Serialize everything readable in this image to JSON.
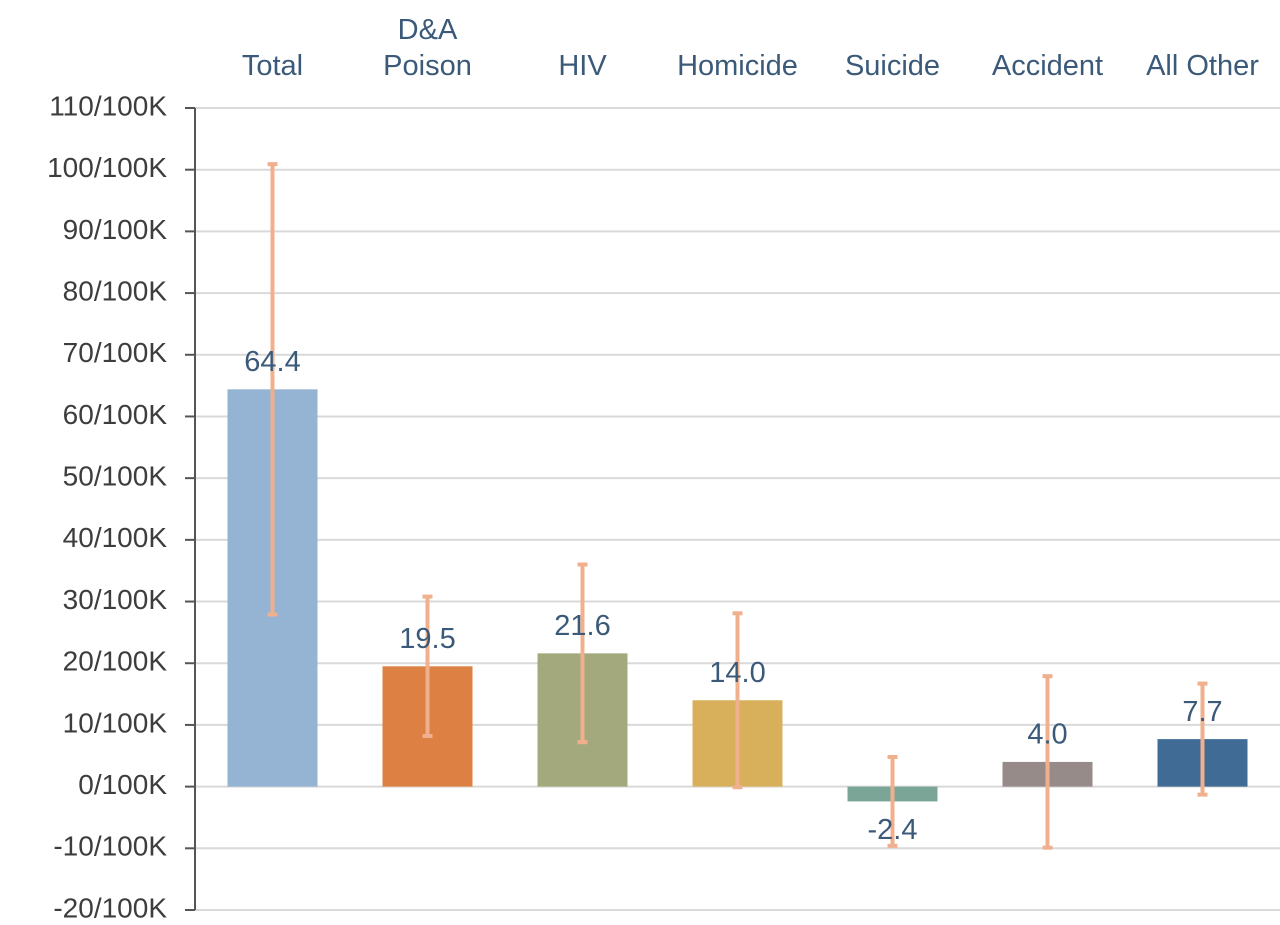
{
  "chart_data": {
    "type": "bar",
    "categories": [
      "Total",
      "D&A\nPoison",
      "HIV",
      "Homicide",
      "Suicide",
      "Accident",
      "All Other"
    ],
    "values": [
      64.4,
      19.5,
      21.6,
      14.0,
      -2.4,
      4.0,
      7.7
    ],
    "value_labels": [
      "64.4",
      "19.5",
      "21.6",
      "14.0",
      "-2.4",
      "4.0",
      "7.7"
    ],
    "errors": [
      36.5,
      11.3,
      14.4,
      14.1,
      7.2,
      13.9,
      9.0
    ],
    "colors": [
      "#95b3d2",
      "#dd8044",
      "#a3a97d",
      "#d8b05c",
      "#7ba597",
      "#968b89",
      "#3f6b94"
    ],
    "error_color": "#f0b08e",
    "ylim": [
      -20,
      110
    ],
    "yticks": [
      {
        "value": -20,
        "label": "-20/100K"
      },
      {
        "value": -10,
        "label": "-10/100K"
      },
      {
        "value": 0,
        "label": "0/100K"
      },
      {
        "value": 10,
        "label": "10/100K"
      },
      {
        "value": 20,
        "label": "20/100K"
      },
      {
        "value": 30,
        "label": "30/100K"
      },
      {
        "value": 40,
        "label": "40/100K"
      },
      {
        "value": 50,
        "label": "50/100K"
      },
      {
        "value": 60,
        "label": "60/100K"
      },
      {
        "value": 70,
        "label": "70/100K"
      },
      {
        "value": 80,
        "label": "80/100K"
      },
      {
        "value": 90,
        "label": "90/100K"
      },
      {
        "value": 100,
        "label": "100/100K"
      },
      {
        "value": 110,
        "label": "110/100K"
      }
    ],
    "grid": true
  }
}
